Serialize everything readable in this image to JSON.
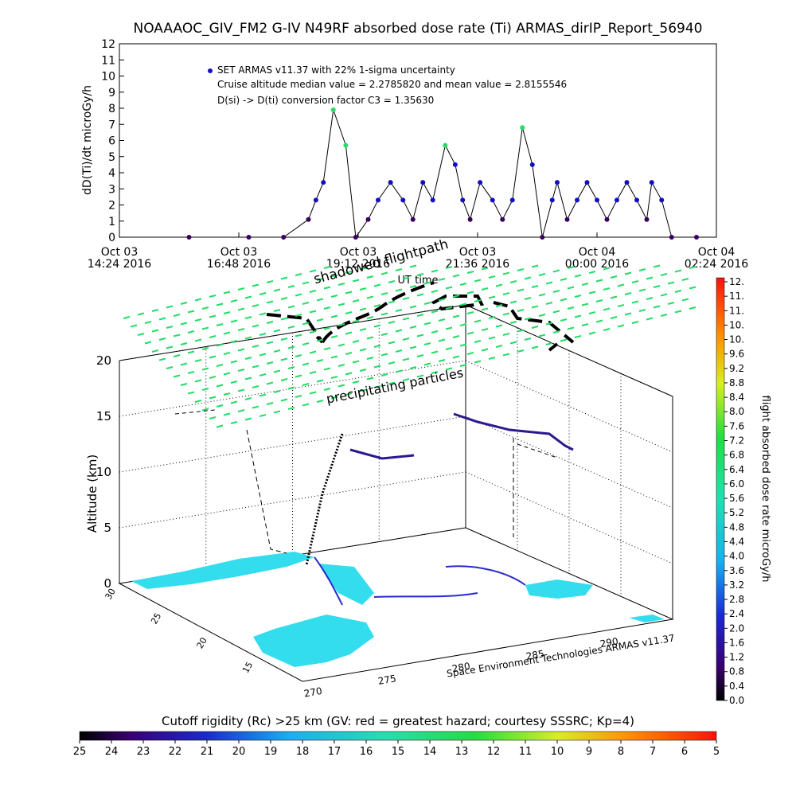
{
  "title": "NOAAAOC_GIV_FM2 G-IV    N49RF  absorbed dose rate (Ti) ARMAS_dirIP_Report_56940",
  "top_plot": {
    "legend": {
      "marker_label": "SET ARMAS v11.37 with 22% 1-sigma uncertainty",
      "line2": "Cruise altitude median value = 2.2785820 and mean value = 2.8155546",
      "line3": "D(si) -> D(ti) conversion factor C3 = 1.35630"
    },
    "xaxis_label": "UT time",
    "overlay_label": "shadowed flightpath"
  },
  "map3d": {
    "z_label": "Altitude (km)",
    "z_ticks": [
      "0",
      "5",
      "10",
      "15",
      "20"
    ],
    "y_ticks": [
      "30",
      "25",
      "20",
      "15"
    ],
    "x_ticks": [
      "270",
      "275",
      "280",
      "285",
      "290"
    ],
    "particles_label": "precipitating particles",
    "credit": "Space Environment Technologies ARMAS v11.37"
  },
  "colorbar_right": {
    "label": "flight absorbed dose rate microGy/h",
    "ticks": [
      "12.",
      "11.",
      "11.",
      "10.",
      "10.",
      "9.6",
      "9.2",
      "8.8",
      "8.4",
      "8.0",
      "7.6",
      "7.2",
      "6.8",
      "6.4",
      "6.0",
      "5.6",
      "5.2",
      "4.8",
      "4.4",
      "4.0",
      "3.6",
      "3.2",
      "2.8",
      "2.4",
      "2.0",
      "1.6",
      "1.2",
      "0.8",
      "0.4",
      "0.0"
    ]
  },
  "colorbar_bottom": {
    "label": "Cutoff rigidity (Rc) >25 km (GV: red = greatest hazard; courtesy SSSRC; Kp=4)",
    "ticks": [
      "25",
      "24",
      "23",
      "22",
      "21",
      "20",
      "19",
      "18",
      "17",
      "16",
      "15",
      "14",
      "13",
      "12",
      "11",
      "10",
      "9",
      "8",
      "7",
      "6",
      "5"
    ]
  },
  "colors": {
    "marker": "#1010c0",
    "trace": "#000000",
    "ocean": "#33ddee",
    "arrows": "#22dd66"
  },
  "chart_data": [
    {
      "type": "scatter",
      "ylabel": "dD(Ti)/dt microGy/h",
      "xlabel": "UT time",
      "ylim": [
        0,
        12
      ],
      "y_ticks": [
        "0",
        "1",
        "2",
        "3",
        "4",
        "5",
        "6",
        "7",
        "8",
        "9",
        "10",
        "11",
        "12"
      ],
      "x_ticks": [
        {
          "l1": "Oct 03",
          "l2": "14:24 2016",
          "h": 0
        },
        {
          "l1": "Oct 03",
          "l2": "16:48 2016",
          "h": 2.4
        },
        {
          "l1": "Oct 03",
          "l2": "19:12 2016",
          "h": 4.8
        },
        {
          "l1": "Oct 03",
          "l2": "21:36 2016",
          "h": 7.2
        },
        {
          "l1": "Oct 04",
          "l2": "00:00 2016",
          "h": 9.6
        },
        {
          "l1": "Oct 04",
          "l2": "02:24 2016",
          "h": 12.0
        }
      ],
      "x_hours": [
        1.4,
        2.6,
        3.3,
        3.8,
        3.95,
        4.1,
        4.3,
        4.55,
        4.75,
        5.0,
        5.2,
        5.45,
        5.7,
        5.9,
        6.1,
        6.3,
        6.55,
        6.75,
        6.9,
        7.05,
        7.25,
        7.5,
        7.7,
        7.9,
        8.1,
        8.3,
        8.5,
        8.7,
        8.8,
        9.0,
        9.2,
        9.4,
        9.6,
        9.8,
        10.0,
        10.2,
        10.4,
        10.6,
        10.7,
        10.9,
        11.1,
        11.6
      ],
      "y_values": [
        0,
        0,
        0,
        1.1,
        2.3,
        3.4,
        7.9,
        5.7,
        0,
        1.1,
        2.3,
        3.4,
        2.3,
        1.1,
        3.4,
        2.3,
        5.7,
        4.5,
        2.3,
        1.1,
        3.4,
        2.3,
        1.1,
        2.3,
        6.8,
        4.5,
        0,
        2.3,
        3.4,
        1.1,
        2.3,
        3.4,
        2.3,
        1.1,
        2.3,
        3.4,
        2.3,
        1.1,
        3.4,
        2.3,
        0,
        0
      ]
    }
  ]
}
